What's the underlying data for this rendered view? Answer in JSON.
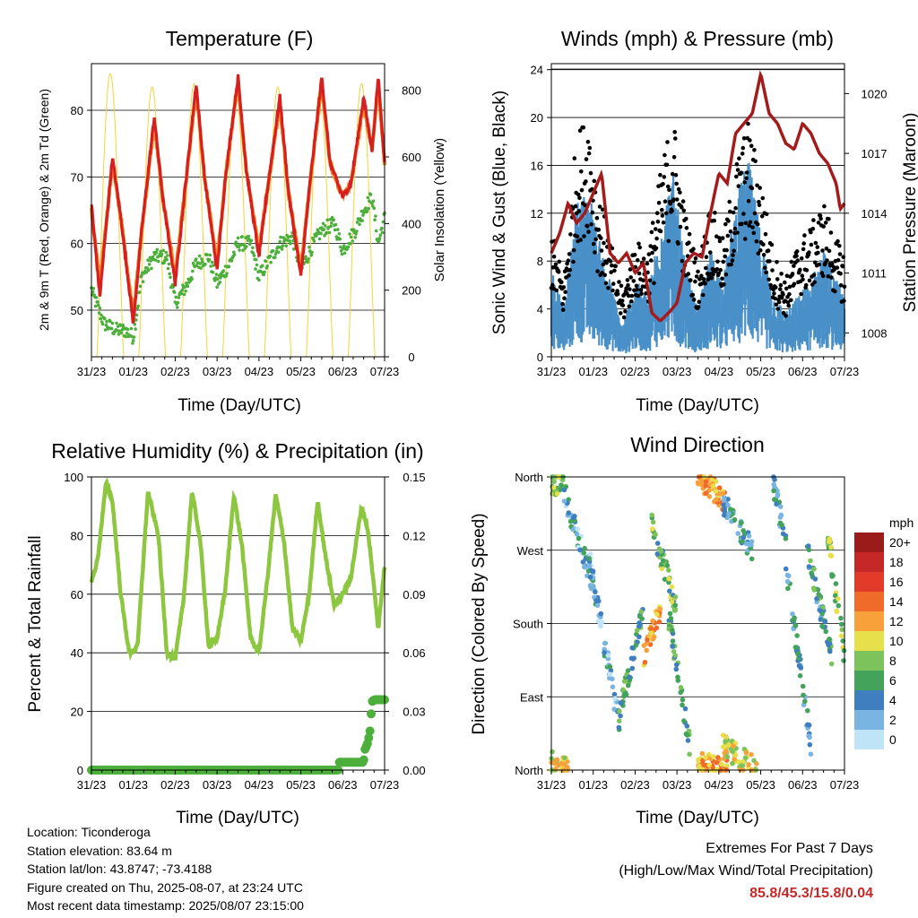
{
  "chart_data": [
    {
      "type": "line",
      "title": "Temperature (F)",
      "xlabel": "Time (Day/UTC)",
      "ylabel": "2m & 9m T (Red, Orange) & 2m Td (Green)",
      "y2label": "Solar Insolation (Yellow)",
      "xticks": [
        "31/23",
        "01/23",
        "02/23",
        "03/23",
        "04/23",
        "05/23",
        "06/23",
        "07/23"
      ],
      "yticks": [
        50,
        60,
        70,
        80
      ],
      "y2ticks": [
        0,
        200,
        400,
        600,
        800
      ],
      "ylim": [
        43,
        87
      ],
      "y2lim": [
        0,
        880
      ],
      "grid": "horizontal",
      "colors": {
        "t2m": "#d62020",
        "t9m": "#f28c28",
        "td2m": "#4caf3c",
        "solar": "#f5d33a"
      },
      "series": [
        {
          "key": "t2m",
          "x": [
            0,
            0.2,
            0.5,
            0.7,
            1.0,
            1.2,
            1.5,
            1.7,
            2.0,
            2.2,
            2.5,
            2.7,
            3.0,
            3.2,
            3.5,
            3.7,
            4.0,
            4.2,
            4.5,
            4.7,
            5.0,
            5.2,
            5.5,
            5.7,
            6.0,
            6.2,
            6.5,
            6.7,
            6.85,
            7.0
          ],
          "values": [
            66,
            52,
            73,
            64,
            48,
            62,
            79,
            67,
            54,
            66,
            84,
            70,
            56,
            70,
            85,
            71,
            58,
            68,
            82,
            68,
            55,
            68,
            85,
            72,
            67,
            69,
            82,
            74,
            85,
            72
          ]
        },
        {
          "key": "t9m",
          "x": [
            0,
            0.2,
            0.5,
            0.7,
            1.0,
            1.2,
            1.5,
            1.7,
            2.0,
            2.2,
            2.5,
            2.7,
            3.0,
            3.2,
            3.5,
            3.7,
            4.0,
            4.2,
            4.5,
            4.7,
            5.0,
            5.2,
            5.5,
            5.7,
            6.0,
            6.2,
            6.5,
            6.7,
            6.85,
            7.0
          ],
          "values": [
            65,
            54,
            72,
            64,
            49,
            62,
            78,
            67,
            55,
            66,
            83,
            70,
            57,
            70,
            84,
            71,
            59,
            68,
            81,
            68,
            56,
            68,
            84,
            72,
            67,
            69,
            81,
            74,
            84,
            72
          ]
        },
        {
          "key": "td2m",
          "x": [
            0,
            0.3,
            0.6,
            0.8,
            1.0,
            1.2,
            1.5,
            1.8,
            2.0,
            2.3,
            2.5,
            2.8,
            3.0,
            3.3,
            3.5,
            3.8,
            4.0,
            4.3,
            4.5,
            4.8,
            5.0,
            5.3,
            5.5,
            5.8,
            6.0,
            6.3,
            6.5,
            6.7,
            6.85,
            7.0
          ],
          "values": [
            53,
            48,
            47,
            47,
            46,
            55,
            58,
            58,
            51,
            54,
            57,
            58,
            54,
            57,
            60,
            60,
            55,
            58,
            60,
            61,
            56,
            60,
            62,
            63,
            59,
            62,
            65,
            67,
            60,
            64
          ]
        },
        {
          "key": "solar",
          "axis": "y2",
          "days": [
            0.45,
            1.45,
            2.45,
            3.45,
            4.45,
            5.45,
            6.45
          ],
          "peaks": [
            850,
            810,
            820,
            800,
            810,
            800,
            820
          ],
          "axis_value": "y2"
        }
      ]
    },
    {
      "type": "line",
      "title": "Winds (mph) & Pressure (mb)",
      "xlabel": "Time (Day/UTC)",
      "ylabel": "Sonic Wind & Gust (Blue, Black)",
      "y2label": "Station Pressure (Maroon)",
      "xticks": [
        "31/23",
        "01/23",
        "02/23",
        "03/23",
        "04/23",
        "05/23",
        "06/23",
        "07/23"
      ],
      "yticks": [
        0,
        4,
        8,
        12,
        16,
        20,
        24
      ],
      "y2ticks": [
        1008,
        1011,
        1014,
        1017,
        1020
      ],
      "ylim": [
        0,
        24.5
      ],
      "y2lim": [
        1006.8,
        1021.5
      ],
      "grid": "horizontal",
      "colors": {
        "wind": "#4a90c8",
        "gust": "#000000",
        "pressure": "#a31b1b"
      },
      "series": [
        {
          "key": "wind",
          "x": [
            0,
            0.3,
            0.6,
            0.9,
            1.1,
            1.4,
            1.7,
            2.0,
            2.3,
            2.6,
            2.9,
            3.2,
            3.5,
            3.8,
            4.1,
            4.4,
            4.7,
            5.0,
            5.3,
            5.6,
            5.9,
            6.2,
            6.5,
            6.8,
            7.0
          ],
          "values": [
            6,
            3,
            10,
            11,
            8,
            5,
            2,
            5,
            4,
            9,
            12,
            6,
            3,
            7,
            5,
            10,
            13,
            8,
            4,
            3,
            4,
            5,
            7,
            5,
            4
          ]
        },
        {
          "key": "gust",
          "x": [
            0,
            0.3,
            0.6,
            0.9,
            1.1,
            1.4,
            1.7,
            2.0,
            2.3,
            2.6,
            2.9,
            3.2,
            3.5,
            3.8,
            4.1,
            4.4,
            4.7,
            5.0,
            5.3,
            5.6,
            5.9,
            6.2,
            6.5,
            6.8,
            7.0
          ],
          "values": [
            10,
            6,
            17,
            19,
            13,
            9,
            5,
            9,
            8,
            14,
            19,
            11,
            7,
            12,
            9,
            15,
            18,
            14,
            8,
            6,
            9,
            10,
            12,
            9,
            8
          ]
        },
        {
          "key": "pressure",
          "axis": "y2",
          "x": [
            0,
            0.2,
            0.4,
            0.6,
            0.8,
            1.0,
            1.2,
            1.4,
            1.6,
            1.8,
            2.0,
            2.2,
            2.4,
            2.6,
            2.8,
            3.0,
            3.2,
            3.4,
            3.6,
            3.8,
            4.0,
            4.2,
            4.4,
            4.6,
            4.8,
            5.0,
            5.2,
            5.4,
            5.6,
            5.8,
            6.0,
            6.2,
            6.4,
            6.6,
            6.8,
            6.9,
            7.0
          ],
          "values": [
            1012,
            1013,
            1014.5,
            1013.5,
            1014,
            1015,
            1016,
            1012,
            1011.5,
            1012,
            1011,
            1011.5,
            1009,
            1008.6,
            1009,
            1009.5,
            1011.5,
            1012,
            1011.8,
            1014,
            1016,
            1015.5,
            1018,
            1018.5,
            1019,
            1021,
            1019,
            1018.5,
            1017.5,
            1017.2,
            1018.5,
            1018,
            1017,
            1016.5,
            1015.5,
            1014.2,
            1014.5
          ]
        }
      ]
    },
    {
      "type": "line",
      "title": "Relative Humidity (%) & Precipitation (in)",
      "xlabel": "Time (Day/UTC)",
      "ylabel": "Percent & Total Rainfall",
      "xticks": [
        "31/23",
        "01/23",
        "02/23",
        "03/23",
        "04/23",
        "05/23",
        "06/23",
        "07/23"
      ],
      "yticks": [
        0,
        20,
        40,
        60,
        80,
        100
      ],
      "y2ticks": [
        "0.00",
        "0.03",
        "0.06",
        "0.09",
        "0.12",
        "0.15"
      ],
      "ylim": [
        0,
        100
      ],
      "y2lim": [
        0,
        0.15
      ],
      "grid": "horizontal",
      "colors": {
        "rh": "#8dc63f",
        "precip": "#4caf3c"
      },
      "series": [
        {
          "key": "rh",
          "x": [
            0,
            0.15,
            0.35,
            0.5,
            0.7,
            0.9,
            1.1,
            1.35,
            1.6,
            1.8,
            2.0,
            2.2,
            2.4,
            2.6,
            2.8,
            3.0,
            3.2,
            3.4,
            3.6,
            3.8,
            4.0,
            4.2,
            4.4,
            4.6,
            4.8,
            5.0,
            5.2,
            5.4,
            5.6,
            5.8,
            6.0,
            6.2,
            6.45,
            6.6,
            6.75,
            6.85,
            7.0
          ],
          "values": [
            64,
            72,
            98,
            92,
            60,
            40,
            42,
            95,
            80,
            40,
            38,
            58,
            95,
            78,
            42,
            45,
            62,
            94,
            76,
            45,
            40,
            65,
            94,
            78,
            48,
            44,
            60,
            92,
            72,
            56,
            60,
            66,
            90,
            82,
            62,
            48,
            70
          ]
        },
        {
          "key": "precip",
          "axis": "y2",
          "x": [
            0,
            5.9,
            5.91,
            6.5,
            6.52,
            6.6,
            6.65,
            6.7,
            6.75,
            7.0
          ],
          "values": [
            0,
            0,
            0.004,
            0.004,
            0.01,
            0.014,
            0.02,
            0.035,
            0.036,
            0.036
          ]
        }
      ]
    },
    {
      "type": "scatter",
      "title": "Wind Direction",
      "xlabel": "Time (Day/UTC)",
      "ylabel": "Direction (Colored By Speed)",
      "xticks": [
        "31/23",
        "01/23",
        "02/23",
        "03/23",
        "04/23",
        "05/23",
        "06/23",
        "07/23"
      ],
      "yticks": [
        "North",
        "East",
        "South",
        "West",
        "North"
      ],
      "ylim": [
        0,
        360
      ],
      "grid": "horizontal",
      "colorbar": {
        "title": "mph",
        "labels": [
          "20+",
          "18",
          "16",
          "14",
          "12",
          "10",
          "8",
          "6",
          "4",
          "2",
          "0"
        ],
        "colors": [
          "#9b1b1b",
          "#c62828",
          "#e23b2a",
          "#f06a2a",
          "#f8a13a",
          "#e8e04a",
          "#7dc35b",
          "#43a35a",
          "#3f7fbf",
          "#79b4e3",
          "#bfe3f7"
        ]
      },
      "segments": [
        {
          "x": [
            0,
            0.35
          ],
          "dir": [
            350,
            360
          ],
          "speed": 8
        },
        {
          "x": [
            0.0,
            0.4
          ],
          "dir": [
            10,
            0
          ],
          "speed": 10
        },
        {
          "x": [
            0.3,
            1.0
          ],
          "dir": [
            340,
            230
          ],
          "speed": 3
        },
        {
          "x": [
            0.9,
            1.6
          ],
          "dir": [
            260,
            60
          ],
          "speed": 3
        },
        {
          "x": [
            1.6,
            2.2
          ],
          "dir": [
            60,
            200
          ],
          "speed": 6
        },
        {
          "x": [
            2.2,
            2.6
          ],
          "dir": [
            140,
            200
          ],
          "speed": 12
        },
        {
          "x": [
            2.4,
            3.0
          ],
          "dir": [
            300,
            200
          ],
          "speed": 7
        },
        {
          "x": [
            2.8,
            3.3
          ],
          "dir": [
            190,
            30
          ],
          "speed": 6
        },
        {
          "x": [
            3.5,
            4.2
          ],
          "dir": [
            360,
            330
          ],
          "speed": 12
        },
        {
          "x": [
            3.5,
            4.2
          ],
          "dir": [
            10,
            0
          ],
          "speed": 12
        },
        {
          "x": [
            4.1,
            4.8
          ],
          "dir": [
            330,
            270
          ],
          "speed": 4
        },
        {
          "x": [
            4.1,
            4.9
          ],
          "dir": [
            30,
            0
          ],
          "speed": 10
        },
        {
          "x": [
            5.3,
            5.6
          ],
          "dir": [
            350,
            280
          ],
          "speed": 4
        },
        {
          "x": [
            5.6,
            6.2
          ],
          "dir": [
            250,
            30
          ],
          "speed": 4
        },
        {
          "x": [
            6.1,
            6.7
          ],
          "dir": [
            270,
            140
          ],
          "speed": 5
        },
        {
          "x": [
            6.6,
            7.0
          ],
          "dir": [
            290,
            140
          ],
          "speed": 8
        }
      ]
    }
  ],
  "footer": {
    "location": "Location: Ticonderoga",
    "elevation": "Station elevation: 83.64 m",
    "latlon": "Station lat/lon: 43.8747; -73.4188",
    "created": "Figure created on Thu, 2025-08-07, at 23:24 UTC",
    "recent": "Most recent data timestamp: 2025/08/07 23:15:00"
  },
  "extremes": {
    "title": "Extremes For Past 7 Days",
    "subtitle": "(High/Low/Max Wind/Total Precipitation)",
    "values": "85.8/45.3/15.8/0.04"
  }
}
